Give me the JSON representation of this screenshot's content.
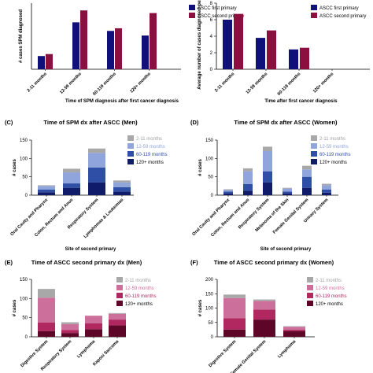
{
  "colors": {
    "navy": "#10107a",
    "maroon": "#8b1040",
    "gray": "#a8a8a8",
    "lightblue": "#8fa5dc",
    "midblue": "#2f4fa6",
    "darkblue": "#101c6a",
    "pink": "#cc6f9b",
    "magenta": "#b0285f",
    "darkmaroon": "#5e0628"
  },
  "chart_data": [
    {
      "id": "A",
      "type": "bar",
      "categories": [
        "2-11 months",
        "12-59 months",
        "60-119 months",
        "120+ months"
      ],
      "series": [
        {
          "name": "ASCC first primary",
          "values": [
            100,
            355,
            290,
            255
          ]
        },
        {
          "name": "ASCC second primary",
          "values": [
            115,
            445,
            310,
            425
          ]
        }
      ],
      "ylabel": "# cases SPM diagnosed",
      "xlabel": "Time of SPM diagnosis after first cancer diagnosis",
      "ylim": [
        0,
        500
      ],
      "yticks": []
    },
    {
      "id": "B",
      "type": "bar",
      "categories": [
        "2-11 months",
        "12-59 months",
        "60-119 months",
        "120+ months"
      ],
      "series": [
        {
          "name": "ASCC first primary",
          "values": [
            6.0,
            3.8,
            2.4,
            null
          ]
        },
        {
          "name": "ASCC second primary",
          "values": [
            6.7,
            4.7,
            2.6,
            null
          ]
        }
      ],
      "ylabel": "Average number of cases diagnosed per month",
      "xlabel": "Time after first cancer diagnosis",
      "ylim": [
        0,
        8
      ],
      "yticks": [
        "0",
        "2",
        "4",
        "6",
        "8"
      ]
    },
    {
      "id": "C",
      "type": "bar",
      "stacked": true,
      "panel_label": "(C)",
      "title": "Time of SPM dx after ASCC (Men)",
      "categories": [
        "Oral Cavity and Pharynx",
        "Colon, Rectum and Anus",
        "Respiratory System",
        "Lymphomas & Leukemias"
      ],
      "series": [
        {
          "name": "120+ months",
          "values": [
            8,
            20,
            35,
            10
          ]
        },
        {
          "name": "60-119 months",
          "values": [
            7,
            12,
            40,
            12
          ]
        },
        {
          "name": "12-59 months",
          "values": [
            10,
            30,
            40,
            13
          ]
        },
        {
          "name": "2-11 months",
          "values": [
            2,
            10,
            12,
            5
          ]
        }
      ],
      "ylabel": "# cases",
      "xlabel": "Site of second primary",
      "ylim": [
        0,
        150
      ],
      "yticks": [
        "0",
        "50",
        "100",
        "150"
      ]
    },
    {
      "id": "D",
      "type": "bar",
      "stacked": true,
      "panel_label": "(D)",
      "title": "Time of SPM dx after ASCC (Women)",
      "categories": [
        "Oral Cavity and Pharynx",
        "Colon, Rectum and Anus",
        "Respiratory System",
        "Melanoma of the Skin",
        "Female Genital System",
        "Urinary System"
      ],
      "series": [
        {
          "name": "120+ months",
          "values": [
            5,
            12,
            35,
            5,
            20,
            7
          ]
        },
        {
          "name": "60-119 months",
          "values": [
            5,
            18,
            30,
            5,
            30,
            8
          ]
        },
        {
          "name": "12-59 months",
          "values": [
            4,
            35,
            55,
            8,
            20,
            12
          ]
        },
        {
          "name": "2-11 months",
          "values": [
            2,
            8,
            12,
            2,
            10,
            4
          ]
        }
      ],
      "ylabel": "# cases",
      "xlabel": "Site of second primary",
      "ylim": [
        0,
        150
      ],
      "yticks": [
        "0",
        "50",
        "100",
        "150"
      ]
    },
    {
      "id": "E",
      "type": "bar",
      "stacked": true,
      "panel_label": "(E)",
      "title": "Time of ASCC second primary dx (Men)",
      "categories": [
        "Digestive System",
        "Respiratory System",
        "Lymphoma",
        "Kaposi Sarcoma"
      ],
      "series": [
        {
          "name": "120+ months",
          "values": [
            15,
            10,
            20,
            30
          ]
        },
        {
          "name": "60-119 months",
          "values": [
            22,
            8,
            15,
            15
          ]
        },
        {
          "name": "12-59 months",
          "values": [
            65,
            15,
            20,
            15
          ]
        },
        {
          "name": "2-11 months",
          "values": [
            23,
            5,
            0,
            2
          ]
        }
      ],
      "ylabel": "# cases",
      "xlabel": "",
      "ylim": [
        0,
        150
      ],
      "yticks": [
        "0",
        "50",
        "100",
        "150"
      ]
    },
    {
      "id": "F",
      "type": "bar",
      "stacked": true,
      "panel_label": "(F)",
      "title": "Time of ASCC second primary dx (Women)",
      "categories": [
        "Digestive System",
        "Female Genital System",
        "Lymphoma"
      ],
      "series": [
        {
          "name": "120+ months",
          "values": [
            25,
            60,
            20
          ]
        },
        {
          "name": "60-119 months",
          "values": [
            40,
            35,
            5
          ]
        },
        {
          "name": "12-59 months",
          "values": [
            70,
            30,
            10
          ]
        },
        {
          "name": "2-11 months",
          "values": [
            12,
            5,
            2
          ]
        }
      ],
      "ylabel": "# cases",
      "xlabel": "",
      "ylim": [
        0,
        200
      ],
      "yticks": [
        "0",
        "50",
        "100",
        "150",
        "200"
      ]
    }
  ]
}
